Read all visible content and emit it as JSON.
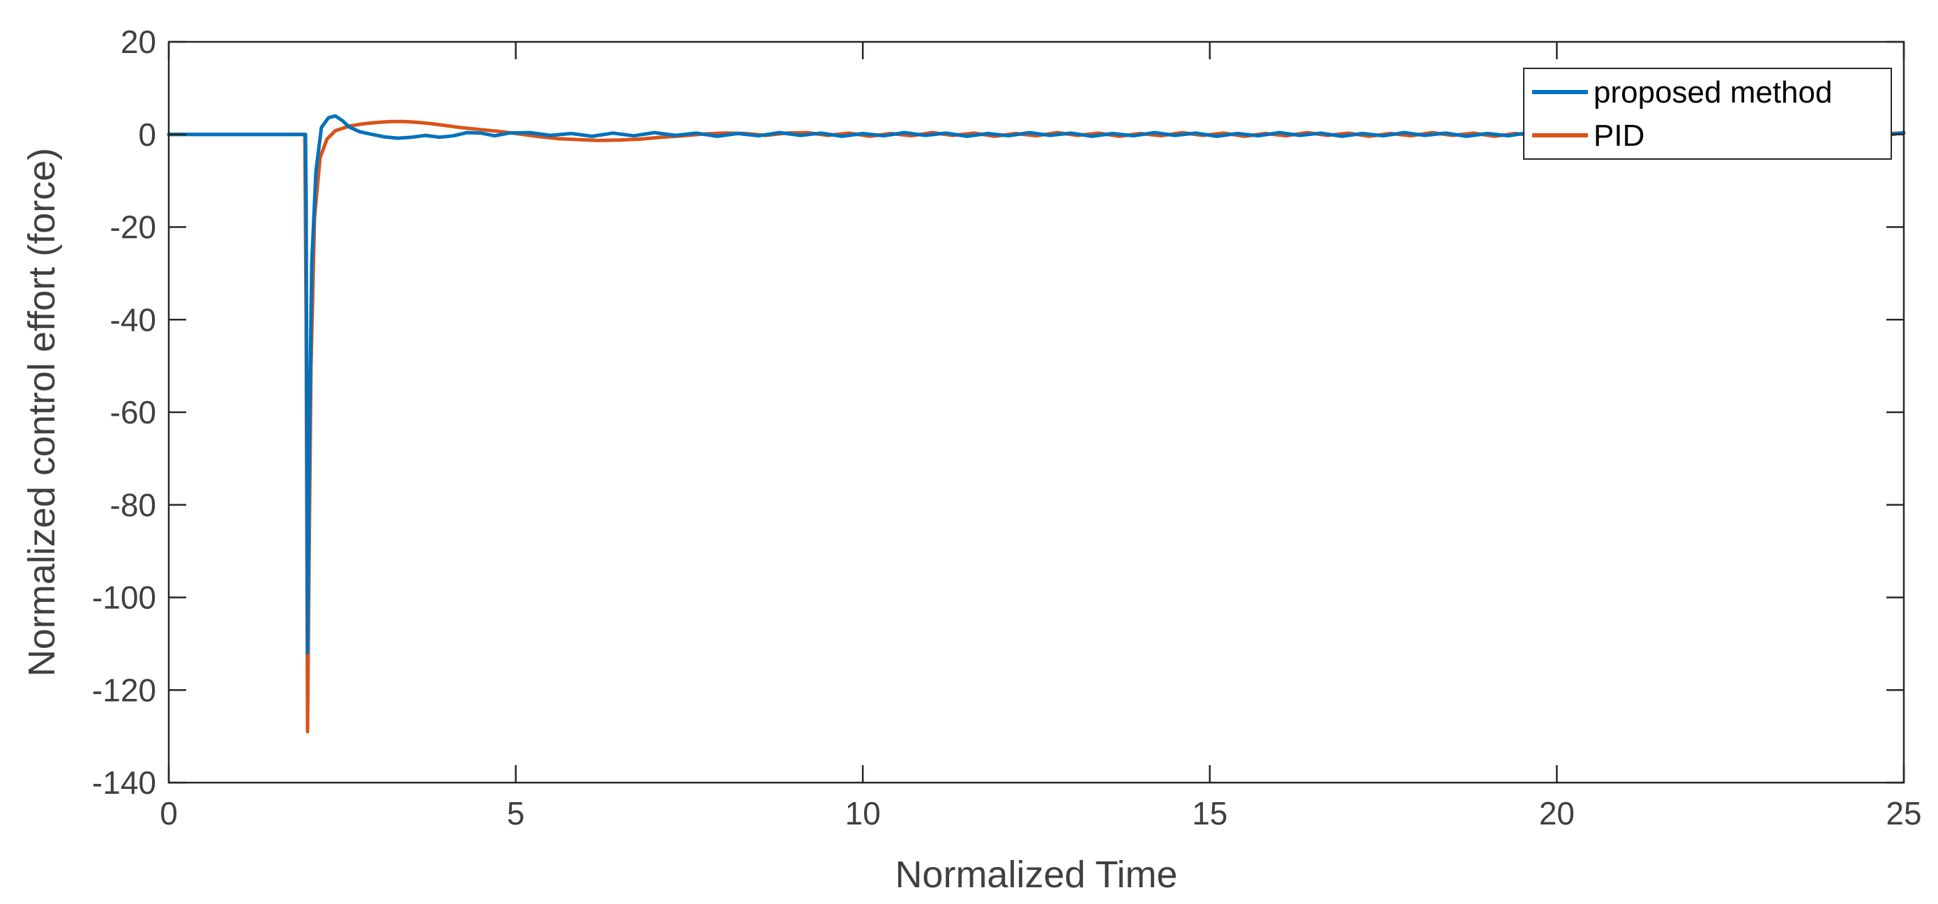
{
  "chart_data": {
    "type": "line",
    "xlabel": "Normalized Time",
    "ylabel": "Normalized control effort (force)",
    "xlim": [
      0,
      25
    ],
    "ylim": [
      -140,
      20
    ],
    "xticks": [
      0,
      5,
      10,
      15,
      20,
      25
    ],
    "yticks": [
      20,
      0,
      -20,
      -40,
      -60,
      -80,
      -100,
      -120,
      -140
    ],
    "grid": false,
    "legend_position": "top-right",
    "series": [
      {
        "name": "proposed method",
        "color": "#0072BD",
        "x": [
          0,
          1.97,
          1.98,
          2.0,
          2.03,
          2.06,
          2.12,
          2.2,
          2.3,
          2.4,
          2.5,
          2.6,
          2.75,
          2.9,
          3.1,
          3.3,
          3.5,
          3.7,
          3.9,
          4.1,
          4.3,
          4.5,
          4.7,
          4.9,
          5.2,
          5.5,
          5.8,
          6.1,
          6.4,
          6.7,
          7.0,
          7.3,
          7.6,
          7.9,
          8.2,
          8.5,
          8.8,
          9.1,
          9.4,
          9.7,
          10.0,
          10.3,
          10.6,
          10.9,
          11.2,
          11.5,
          11.8,
          12.1,
          12.4,
          12.7,
          13.0,
          13.3,
          13.6,
          13.9,
          14.2,
          14.5,
          14.8,
          15.1,
          15.4,
          15.7,
          16.0,
          16.3,
          16.6,
          16.9,
          17.2,
          17.5,
          17.8,
          18.1,
          18.4,
          18.7,
          19.0,
          19.3,
          19.6,
          19.9,
          20.2,
          20.5,
          20.8,
          21.1,
          21.4,
          21.7,
          22.0,
          22.3,
          22.6,
          22.9,
          23.2,
          23.5,
          23.8,
          24.1,
          24.4,
          24.7,
          25.0
        ],
        "y": [
          0,
          0,
          -15,
          -112,
          -60,
          -28,
          -8,
          1.5,
          3.6,
          4.0,
          3.0,
          1.6,
          0.6,
          0.1,
          -0.5,
          -0.8,
          -0.6,
          -0.2,
          -0.6,
          -0.3,
          0.4,
          0.3,
          -0.3,
          0.3,
          0.4,
          -0.2,
          0.2,
          -0.4,
          0.3,
          -0.3,
          0.4,
          -0.2,
          0.3,
          -0.4,
          0.2,
          -0.3,
          0.4,
          -0.2,
          0.3,
          -0.4,
          0.2,
          -0.3,
          0.4,
          -0.2,
          0.3,
          -0.4,
          0.2,
          -0.3,
          0.4,
          -0.2,
          0.3,
          -0.4,
          0.2,
          -0.3,
          0.4,
          -0.2,
          0.3,
          -0.4,
          0.2,
          -0.3,
          0.4,
          -0.2,
          0.3,
          -0.4,
          0.2,
          -0.3,
          0.4,
          -0.2,
          0.3,
          -0.4,
          0.2,
          -0.3,
          0.4,
          -0.2,
          0.3,
          -0.4,
          0.2,
          -0.3,
          0.4,
          -0.2,
          0.3,
          -0.4,
          0.2,
          -0.3,
          0.4,
          -0.2,
          0.3,
          -0.4,
          0.2,
          -0.3,
          0.4
        ]
      },
      {
        "name": "PID",
        "color": "#D95319",
        "x": [
          0,
          1.96,
          1.98,
          2.0,
          2.02,
          2.05,
          2.1,
          2.18,
          2.28,
          2.4,
          2.6,
          2.8,
          3.0,
          3.2,
          3.4,
          3.6,
          3.8,
          4.0,
          4.2,
          4.4,
          4.6,
          4.8,
          5.0,
          5.3,
          5.6,
          5.9,
          6.2,
          6.5,
          6.8,
          7.1,
          7.4,
          7.7,
          8.0,
          8.3,
          8.6,
          8.9,
          9.2,
          9.5,
          9.8,
          10.1,
          10.4,
          10.7,
          11.0,
          11.3,
          11.6,
          11.9,
          12.2,
          12.5,
          12.8,
          13.1,
          13.4,
          13.7,
          14.0,
          14.3,
          14.6,
          14.9,
          15.2,
          15.5,
          15.8,
          16.1,
          16.4,
          16.7,
          17.0,
          17.3,
          17.6,
          17.9,
          18.2,
          18.5,
          18.8,
          19.1,
          19.4,
          19.7,
          20.0,
          20.3,
          20.6,
          20.9,
          21.2,
          21.5,
          21.8,
          22.1,
          22.4,
          22.7,
          23.0,
          23.3,
          23.6,
          23.9,
          24.2,
          24.5,
          24.8,
          25.0
        ],
        "y": [
          0,
          0,
          -40,
          -129,
          -95,
          -50,
          -18,
          -5,
          -1,
          0.8,
          1.8,
          2.3,
          2.6,
          2.8,
          2.8,
          2.6,
          2.3,
          1.9,
          1.5,
          1.2,
          0.9,
          0.6,
          0.2,
          -0.4,
          -0.9,
          -1.1,
          -1.3,
          -1.2,
          -1.0,
          -0.6,
          -0.3,
          0.1,
          0.3,
          0.2,
          -0.2,
          0.3,
          0.4,
          -0.2,
          0.3,
          -0.4,
          0.2,
          -0.3,
          0.4,
          -0.2,
          0.3,
          -0.4,
          0.2,
          -0.3,
          0.4,
          -0.2,
          0.3,
          -0.4,
          0.2,
          -0.3,
          0.4,
          -0.2,
          0.3,
          -0.4,
          0.2,
          -0.3,
          0.4,
          -0.2,
          0.3,
          -0.4,
          0.2,
          -0.3,
          0.4,
          -0.2,
          0.3,
          -0.4,
          0.2,
          -0.3,
          0.4,
          -0.2,
          0.3,
          -0.4,
          0.2,
          -0.3,
          0.4,
          -0.2,
          0.3,
          -0.4,
          0.2,
          -0.3,
          0.4,
          -0.2,
          0.3,
          -0.4,
          0.2,
          0.3
        ]
      }
    ]
  }
}
